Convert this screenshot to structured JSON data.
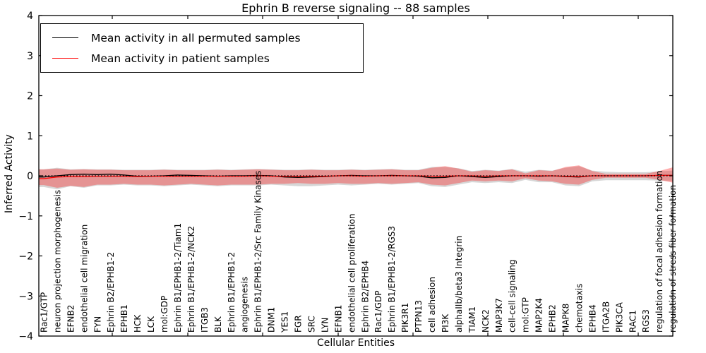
{
  "chart_data": {
    "type": "line",
    "title": "Ephrin B reverse signaling -- 88 samples",
    "xlabel": "Cellular Entities",
    "ylabel": "Inferred Activity",
    "ylim": [
      -4,
      4
    ],
    "yticks": [
      4,
      3,
      2,
      1,
      0,
      -1,
      -2,
      -3,
      -4
    ],
    "grid": false,
    "legend_position": "upper left",
    "zero_reference_line": "black dotted line at y=0",
    "categories": [
      "Rac1/GTP",
      "neuron projection morphogenesis",
      "EFNB2",
      "endothelial cell migration",
      "FYN",
      "Ephrin B2/EPHB1-2",
      "EPHB1",
      "HCK",
      "LCK",
      "mol:GDP",
      "Ephrin B1/EPHB1-2/Tiam1",
      "Ephrin B1/EPHB1-2/NCK2",
      "ITGB3",
      "BLK",
      "Ephrin B1/EPHB1-2",
      "angiogenesis",
      "Ephrin B1/EPHB1-2/Src Family Kinases",
      "DNM1",
      "YES1",
      "FGR",
      "SRC",
      "LYN",
      "EFNB1",
      "endothelial cell proliferation",
      "Ephrin B2/EPHB4",
      "Rac1/GDP",
      "Ephrin B1/EPHB1-2/RGS3",
      "PIK3R1",
      "PTPN13",
      "cell adhesion",
      "PI3K",
      "alphaIIb/beta3 Integrin",
      "TIAM1",
      "NCK2",
      "MAP3K7",
      "cell-cell signaling",
      "mol:GTP",
      "MAP2K4",
      "EPHB2",
      "MAPK8",
      "chemotaxis",
      "EPHB4",
      "ITGA2B",
      "PIK3CA",
      "RAC1",
      "RGS3",
      "regulation of focal adhesion formation",
      "regulation of stress fiber formation"
    ],
    "series": [
      {
        "name": "Mean activity in all permuted samples",
        "color": "#000000",
        "band_color": "rgba(120,120,120,0.30)",
        "values": [
          -0.03,
          0.0,
          0.03,
          0.04,
          0.03,
          0.04,
          0.02,
          -0.01,
          -0.01,
          0.0,
          0.02,
          0.01,
          0.0,
          -0.01,
          0.0,
          0.0,
          0.01,
          0.0,
          -0.03,
          -0.04,
          -0.03,
          -0.02,
          0.0,
          0.01,
          0.0,
          0.0,
          0.01,
          0.0,
          -0.01,
          -0.05,
          -0.04,
          0.0,
          -0.02,
          -0.04,
          -0.02,
          0.0,
          0.0,
          -0.01,
          0.0,
          -0.02,
          -0.03,
          0.0,
          0.0,
          0.0,
          0.0,
          0.0,
          0.01,
          0.01
        ],
        "band_upper": [
          0.16,
          0.2,
          0.16,
          0.17,
          0.16,
          0.16,
          0.15,
          0.15,
          0.15,
          0.16,
          0.15,
          0.15,
          0.15,
          0.16,
          0.15,
          0.16,
          0.17,
          0.16,
          0.15,
          0.15,
          0.16,
          0.15,
          0.15,
          0.16,
          0.15,
          0.16,
          0.17,
          0.15,
          0.15,
          0.22,
          0.22,
          0.19,
          0.12,
          0.15,
          0.13,
          0.17,
          0.1,
          0.15,
          0.13,
          0.2,
          0.24,
          0.13,
          0.1,
          0.09,
          0.09,
          0.09,
          0.11,
          0.13
        ],
        "band_lower": [
          -0.28,
          -0.34,
          -0.26,
          -0.3,
          -0.24,
          -0.24,
          -0.22,
          -0.24,
          -0.24,
          -0.26,
          -0.24,
          -0.22,
          -0.24,
          -0.26,
          -0.24,
          -0.24,
          -0.24,
          -0.22,
          -0.24,
          -0.26,
          -0.26,
          -0.24,
          -0.22,
          -0.24,
          -0.22,
          -0.2,
          -0.22,
          -0.2,
          -0.18,
          -0.26,
          -0.28,
          -0.22,
          -0.16,
          -0.18,
          -0.16,
          -0.18,
          -0.1,
          -0.16,
          -0.16,
          -0.24,
          -0.26,
          -0.14,
          -0.11,
          -0.11,
          -0.11,
          -0.11,
          -0.12,
          -0.13
        ]
      },
      {
        "name": "Mean activity in patient samples",
        "color": "#ff0000",
        "band_color": "rgba(255,40,40,0.38)",
        "values": [
          -0.07,
          -0.03,
          -0.02,
          -0.02,
          -0.01,
          -0.01,
          -0.01,
          -0.02,
          -0.01,
          -0.01,
          -0.01,
          -0.01,
          -0.01,
          -0.01,
          -0.01,
          -0.01,
          0.0,
          -0.01,
          -0.01,
          -0.01,
          -0.01,
          -0.01,
          0.0,
          0.0,
          -0.01,
          0.0,
          0.0,
          0.0,
          0.0,
          -0.01,
          -0.01,
          0.0,
          0.0,
          -0.01,
          0.0,
          0.0,
          0.0,
          0.0,
          0.0,
          -0.01,
          -0.02,
          0.0,
          0.0,
          0.0,
          0.0,
          0.0,
          0.01,
          0.01
        ],
        "band_upper": [
          0.16,
          0.18,
          0.15,
          0.16,
          0.15,
          0.15,
          0.14,
          0.14,
          0.14,
          0.15,
          0.14,
          0.14,
          0.14,
          0.15,
          0.14,
          0.15,
          0.16,
          0.15,
          0.14,
          0.14,
          0.15,
          0.14,
          0.14,
          0.15,
          0.14,
          0.15,
          0.16,
          0.14,
          0.14,
          0.2,
          0.24,
          0.18,
          0.1,
          0.14,
          0.12,
          0.16,
          0.06,
          0.14,
          0.12,
          0.22,
          0.26,
          0.12,
          0.05,
          0.05,
          0.05,
          0.05,
          0.12,
          0.21
        ],
        "band_lower": [
          -0.23,
          -0.3,
          -0.25,
          -0.28,
          -0.22,
          -0.22,
          -0.2,
          -0.22,
          -0.22,
          -0.24,
          -0.22,
          -0.2,
          -0.22,
          -0.24,
          -0.22,
          -0.22,
          -0.22,
          -0.2,
          -0.2,
          -0.18,
          -0.2,
          -0.2,
          -0.18,
          -0.2,
          -0.2,
          -0.18,
          -0.2,
          -0.18,
          -0.16,
          -0.22,
          -0.24,
          -0.18,
          -0.12,
          -0.14,
          -0.12,
          -0.14,
          -0.06,
          -0.12,
          -0.14,
          -0.2,
          -0.22,
          -0.1,
          -0.05,
          -0.05,
          -0.05,
          -0.05,
          -0.1,
          -0.17
        ]
      }
    ]
  }
}
